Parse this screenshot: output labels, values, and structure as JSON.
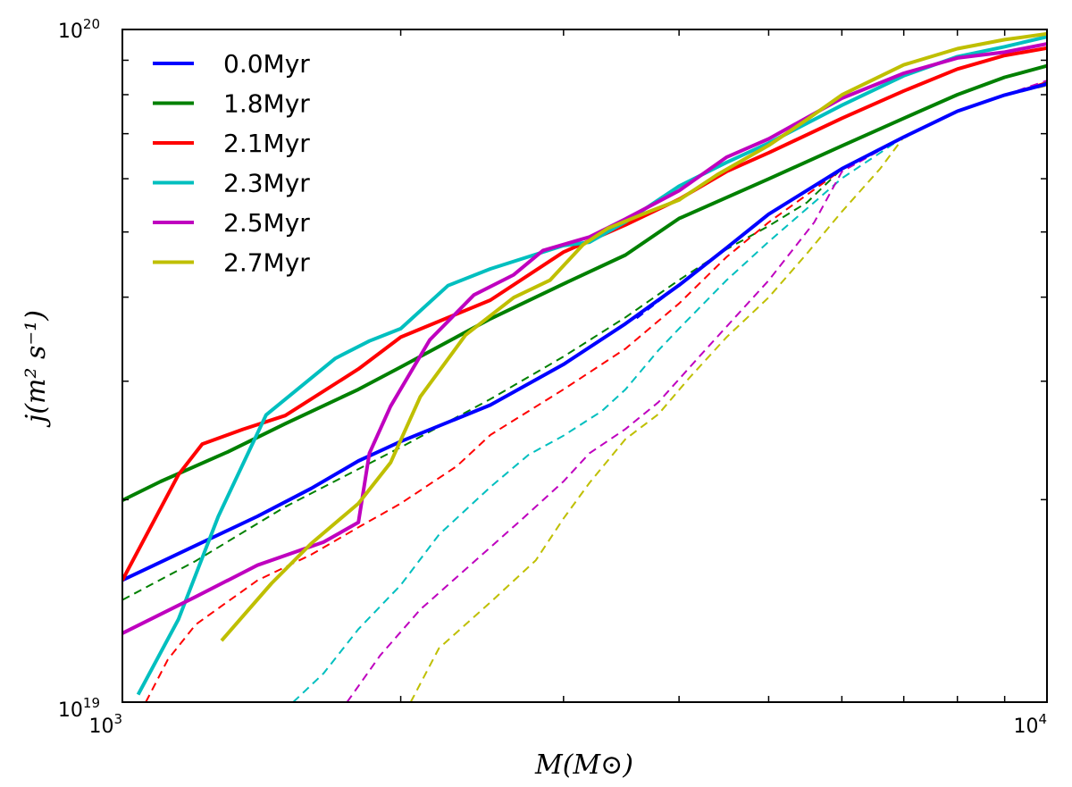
{
  "chart_data": {
    "type": "line",
    "xscale": "log",
    "yscale": "log",
    "xlim": [
      1000,
      10000
    ],
    "ylim": [
      1e+19,
      1e+20
    ],
    "xlabel": "M(M⊙)",
    "ylabel": "j(m² s⁻¹)",
    "x_ticks": [
      {
        "base": "10",
        "exp": "3"
      },
      {
        "base": "10",
        "exp": "4"
      }
    ],
    "y_ticks": [
      {
        "base": "10",
        "exp": "19"
      },
      {
        "base": "10",
        "exp": "20"
      }
    ],
    "legend_position": "upper-left",
    "grid": false,
    "series": [
      {
        "name": "0.0Myr",
        "color": "#0000ff",
        "solid": [
          [
            1000,
            1.518e+19
          ],
          [
            1200,
            1.709e+19
          ],
          [
            1400,
            1.889e+19
          ],
          [
            1600,
            2.078e+19
          ],
          [
            1800,
            2.283e+19
          ],
          [
            2000,
            2.441e+19
          ],
          [
            2500,
            2.765e+19
          ],
          [
            3000,
            3.178e+19
          ],
          [
            3500,
            3.652e+19
          ],
          [
            4000,
            4.167e+19
          ],
          [
            4500,
            4.732e+19
          ],
          [
            5000,
            5.313e+19
          ],
          [
            6000,
            6.209e+19
          ],
          [
            7000,
            6.92e+19
          ],
          [
            8000,
            7.56e+19
          ],
          [
            9000,
            7.99e+19
          ],
          [
            10000,
            8.295e+19
          ]
        ],
        "dashed": [
          [
            3600,
            3.72e+19
          ],
          [
            4000,
            4.167e+19
          ],
          [
            4500,
            4.732e+19
          ],
          [
            5000,
            5.313e+19
          ],
          [
            6000,
            6.209e+19
          ],
          [
            7000,
            6.92e+19
          ],
          [
            8000,
            7.56e+19
          ],
          [
            9000,
            7.99e+19
          ],
          [
            10000,
            8.295e+19
          ]
        ]
      },
      {
        "name": "1.8Myr",
        "color": "#008000",
        "solid": [
          [
            1000,
            1.995e+19
          ],
          [
            1100,
            2.128e+19
          ],
          [
            1300,
            2.355e+19
          ],
          [
            1500,
            2.594e+19
          ],
          [
            1800,
            2.917e+19
          ],
          [
            2000,
            3.149e+19
          ],
          [
            2500,
            3.714e+19
          ],
          [
            3000,
            4.186e+19
          ],
          [
            3500,
            4.621e+19
          ],
          [
            4000,
            5.236e+19
          ],
          [
            5000,
            5.996e+19
          ],
          [
            6000,
            6.714e+19
          ],
          [
            7000,
            7.379e+19
          ],
          [
            8000,
            8e+19
          ],
          [
            9000,
            8.49e+19
          ],
          [
            10000,
            8.831e+19
          ]
        ],
        "dashed": [
          [
            1000,
            1.419e+19
          ],
          [
            1200,
            1.621e+19
          ],
          [
            1500,
            1.952e+19
          ],
          [
            2000,
            2.393e+19
          ],
          [
            2500,
            2.821e+19
          ],
          [
            3000,
            3.263e+19
          ],
          [
            3500,
            3.732e+19
          ],
          [
            4000,
            4.241e+19
          ],
          [
            4500,
            4.711e+19
          ],
          [
            5000,
            5.103e+19
          ],
          [
            5500,
            5.53e+19
          ],
          [
            6000,
            6.209e+19
          ],
          [
            7000,
            6.92e+19
          ],
          [
            8000,
            7.56e+19
          ],
          [
            9000,
            7.99e+19
          ],
          [
            10000,
            8.354e+19
          ]
        ]
      },
      {
        "name": "2.1Myr",
        "color": "#ff0000",
        "solid": [
          [
            1000,
            1.518e+19
          ],
          [
            1150,
            2.179e+19
          ],
          [
            1220,
            2.419e+19
          ],
          [
            1350,
            2.544e+19
          ],
          [
            1500,
            2.667e+19
          ],
          [
            1800,
            3.128e+19
          ],
          [
            2000,
            3.488e+19
          ],
          [
            2500,
            3.959e+19
          ],
          [
            3000,
            4.667e+19
          ],
          [
            3500,
            5.122e+19
          ],
          [
            4000,
            5.591e+19
          ],
          [
            4500,
            6.148e+19
          ],
          [
            5000,
            6.555e+19
          ],
          [
            6000,
            7.379e+19
          ],
          [
            7000,
            8.103e+19
          ],
          [
            8000,
            8.733e+19
          ],
          [
            9000,
            9.148e+19
          ],
          [
            10000,
            9.38e+19
          ]
        ],
        "dashed": [
          [
            1060,
            1e+19
          ],
          [
            1120,
            1.157e+19
          ],
          [
            1200,
            1.304e+19
          ],
          [
            1400,
            1.517e+19
          ],
          [
            1600,
            1.657e+19
          ],
          [
            1800,
            1.819e+19
          ],
          [
            2000,
            1.974e+19
          ],
          [
            2300,
            2.243e+19
          ],
          [
            2500,
            2.496e+19
          ],
          [
            3000,
            2.917e+19
          ],
          [
            3500,
            3.352e+19
          ],
          [
            4000,
            3.913e+19
          ],
          [
            4500,
            4.586e+19
          ],
          [
            5000,
            5.167e+19
          ],
          [
            6000,
            6.188e+19
          ],
          [
            7000,
            6.92e+19
          ],
          [
            8000,
            7.56e+19
          ],
          [
            9000,
            7.99e+19
          ],
          [
            10000,
            8.354e+19
          ]
        ]
      },
      {
        "name": "2.3Myr",
        "color": "#00bfbf",
        "solid": [
          [
            1040,
            1.026e+19
          ],
          [
            1150,
            1.328e+19
          ],
          [
            1270,
            1.889e+19
          ],
          [
            1430,
            2.672e+19
          ],
          [
            1700,
            3.245e+19
          ],
          [
            1850,
            3.443e+19
          ],
          [
            2000,
            3.591e+19
          ],
          [
            2250,
            4.162e+19
          ],
          [
            2500,
            4.407e+19
          ],
          [
            3000,
            4.773e+19
          ],
          [
            3200,
            4.828e+19
          ],
          [
            3500,
            5.176e+19
          ],
          [
            4000,
            5.849e+19
          ],
          [
            4500,
            6.343e+19
          ],
          [
            5000,
            6.778e+19
          ],
          [
            6000,
            7.717e+19
          ],
          [
            7000,
            8.534e+19
          ],
          [
            8000,
            9.112e+19
          ],
          [
            9000,
            9.426e+19
          ],
          [
            10000,
            9.752e+19
          ]
        ],
        "dashed": [
          [
            1530,
            1e+19
          ],
          [
            1650,
            1.103e+19
          ],
          [
            1800,
            1.284e+19
          ],
          [
            2000,
            1.493e+19
          ],
          [
            2200,
            1.774e+19
          ],
          [
            2500,
            2.088e+19
          ],
          [
            2750,
            2.332e+19
          ],
          [
            3000,
            2.49e+19
          ],
          [
            3300,
            2.708e+19
          ],
          [
            3500,
            2.916e+19
          ],
          [
            3800,
            3.335e+19
          ],
          [
            4000,
            3.591e+19
          ],
          [
            4500,
            4.236e+19
          ],
          [
            5000,
            4.836e+19
          ],
          [
            6000,
            6.009e+19
          ],
          [
            7000,
            6.92e+19
          ],
          [
            8000,
            7.56e+19
          ],
          [
            9000,
            7.99e+19
          ],
          [
            10000,
            8.295e+19
          ]
        ]
      },
      {
        "name": "2.5Myr",
        "color": "#bf00bf",
        "solid": [
          [
            1000,
            1.266e+19
          ],
          [
            1200,
            1.434e+19
          ],
          [
            1400,
            1.598e+19
          ],
          [
            1650,
            1.729e+19
          ],
          [
            1800,
            1.85e+19
          ],
          [
            1850,
            2.344e+19
          ],
          [
            1950,
            2.753e+19
          ],
          [
            2150,
            3.455e+19
          ],
          [
            2400,
            4.03e+19
          ],
          [
            2650,
            4.318e+19
          ],
          [
            2850,
            4.693e+19
          ],
          [
            3200,
            4.915e+19
          ],
          [
            3500,
            5.226e+19
          ],
          [
            4000,
            5.759e+19
          ],
          [
            4500,
            6.455e+19
          ],
          [
            5000,
            6.876e+19
          ],
          [
            6000,
            7.902e+19
          ],
          [
            7000,
            8.608e+19
          ],
          [
            8000,
            9.071e+19
          ],
          [
            9000,
            9.252e+19
          ],
          [
            10000,
            9.519e+19
          ]
        ],
        "dashed": [
          [
            1750,
            1e+19
          ],
          [
            1900,
            1.173e+19
          ],
          [
            2100,
            1.373e+19
          ],
          [
            2400,
            1.616e+19
          ],
          [
            2700,
            1.866e+19
          ],
          [
            3000,
            2.129e+19
          ],
          [
            3200,
            2.344e+19
          ],
          [
            3500,
            2.547e+19
          ],
          [
            3800,
            2.792e+19
          ],
          [
            4200,
            3.256e+19
          ],
          [
            4600,
            3.736e+19
          ],
          [
            5000,
            4.235e+19
          ],
          [
            5600,
            5.166e+19
          ],
          [
            6000,
            6.147e+19
          ],
          [
            7000,
            6.92e+19
          ],
          [
            8000,
            7.56e+19
          ],
          [
            9000,
            7.99e+19
          ],
          [
            10000,
            8.395e+19
          ]
        ]
      },
      {
        "name": "2.7Myr",
        "color": "#bfbf00",
        "solid": [
          [
            1280,
            1.234e+19
          ],
          [
            1450,
            1.502e+19
          ],
          [
            1600,
            1.721e+19
          ],
          [
            1800,
            1.974e+19
          ],
          [
            1950,
            2.27e+19
          ],
          [
            2100,
            2.845e+19
          ],
          [
            2350,
            3.513e+19
          ],
          [
            2650,
            3.994e+19
          ],
          [
            2900,
            4.239e+19
          ],
          [
            3150,
            4.789e+19
          ],
          [
            3350,
            5.063e+19
          ],
          [
            3700,
            5.351e+19
          ],
          [
            4000,
            5.578e+19
          ],
          [
            4400,
            6.084e+19
          ],
          [
            5000,
            6.724e+19
          ],
          [
            5500,
            7.347e+19
          ],
          [
            6000,
            7.994e+19
          ],
          [
            7000,
            8.86e+19
          ],
          [
            8000,
            9.363e+19
          ],
          [
            9000,
            9.657e+19
          ],
          [
            10000,
            9.852e+19
          ]
        ],
        "dashed": [
          [
            2050,
            1e+19
          ],
          [
            2200,
            1.203e+19
          ],
          [
            2500,
            1.407e+19
          ],
          [
            2800,
            1.625e+19
          ],
          [
            3000,
            1.875e+19
          ],
          [
            3200,
            2.118e+19
          ],
          [
            3500,
            2.46e+19
          ],
          [
            3800,
            2.68e+19
          ],
          [
            4100,
            3.03e+19
          ],
          [
            4500,
            3.485e+19
          ],
          [
            5000,
            3.996e+19
          ],
          [
            5500,
            4.645e+19
          ],
          [
            6000,
            5.36e+19
          ],
          [
            6600,
            6.209e+19
          ],
          [
            7000,
            6.92e+19
          ],
          [
            8000,
            7.56e+19
          ],
          [
            9000,
            7.99e+19
          ],
          [
            10000,
            8.254e+19
          ]
        ]
      }
    ]
  }
}
